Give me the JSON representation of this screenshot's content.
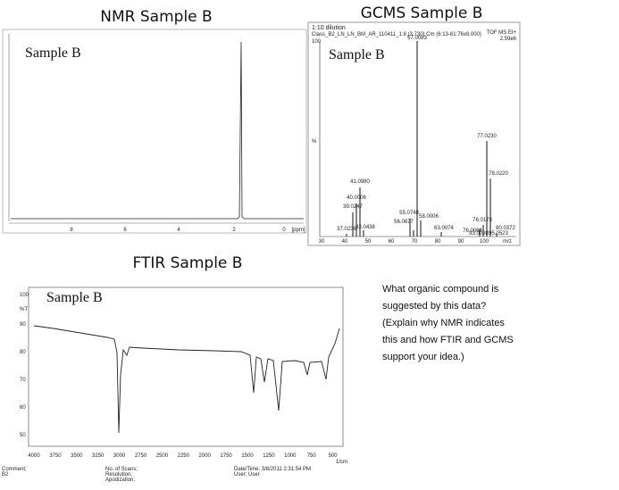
{
  "nmr": {
    "title": "NMR Sample B",
    "sample": "Sample B",
    "xticks": [
      "8",
      "6",
      "4",
      "2",
      "0",
      "[ppm]"
    ]
  },
  "gcms": {
    "title": "GCMS Sample B",
    "sample": "Sample B",
    "header": "1:10 dilution",
    "subheader": "Class_B2_LN_LN_BM_AR_110411_1:8 (3.730) Cm (6:13-61:76x8.000)",
    "detector": "TOF MS EI+",
    "intensity": "2.59e6",
    "yaxis_top": "100",
    "yaxis_label": "%",
    "peaks": [
      "37.0236",
      "39.0247",
      "40.0006",
      "41.0980",
      "42.0438",
      "55.0748",
      "56.0677",
      "57.0083",
      "58.0006",
      "63.0074",
      "76.0064",
      "76.0173",
      "77.0230",
      "78.0220",
      "80.0372",
      "93.0098",
      "95.0523"
    ],
    "xticks": [
      "30",
      "40",
      "50",
      "60",
      "70",
      "80",
      "90",
      "100",
      "m/z"
    ]
  },
  "ftir": {
    "title": "FTIR Sample B",
    "sample": "Sample B",
    "yticks": [
      "100",
      "%T",
      "90",
      "80",
      "70",
      "60",
      "50"
    ],
    "xticks": [
      "4000",
      "3750",
      "3500",
      "3250",
      "3000",
      "2750",
      "2500",
      "2250",
      "2000",
      "1750",
      "1500",
      "1250",
      "1000",
      "750",
      "500"
    ],
    "xunit": "1/cm",
    "footer": [
      "Comment;",
      "B2",
      "No. of Scans;",
      "Resolution;",
      "Apodization;",
      "Date/Time; 3/8/2011 2:31:54 PM",
      "User; User"
    ]
  },
  "question": [
    "What organic compound is",
    "suggested by this data?",
    "(Explain why NMR indicates",
    "this and how FTIR and GCMS",
    "support your idea.)"
  ]
}
